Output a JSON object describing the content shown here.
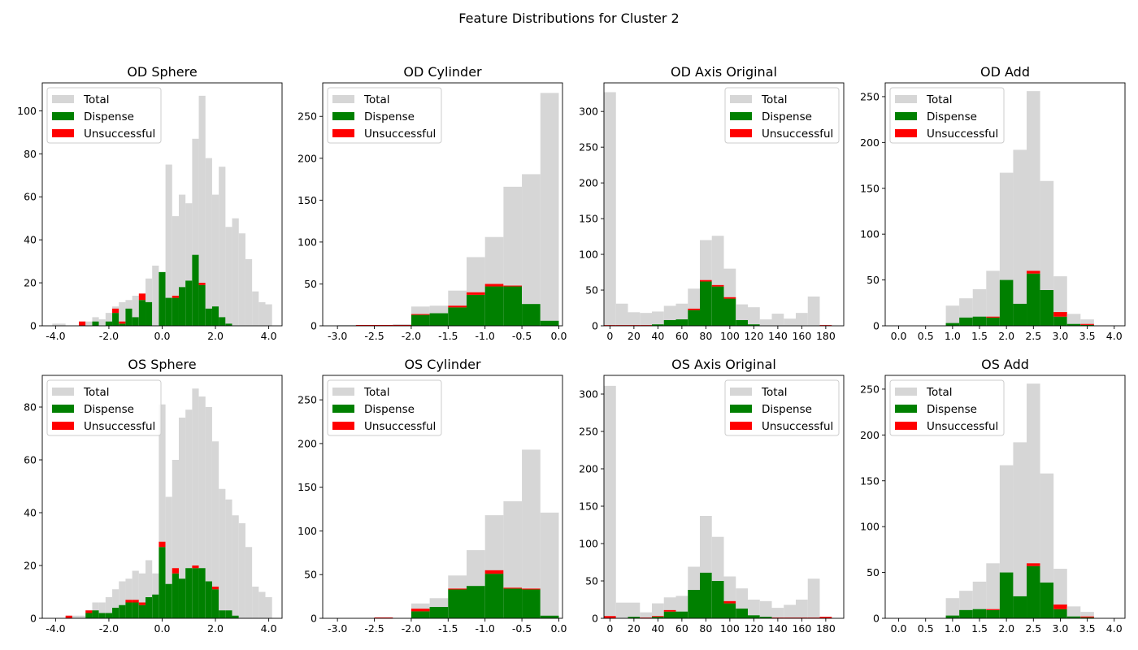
{
  "suptitle": "Feature Distributions for Cluster 2",
  "legend_labels": [
    "Total",
    "Dispense",
    "Unsuccessful"
  ],
  "colors": {
    "total": "#d6d6d6",
    "dispense": "#008000",
    "unsuccessful": "#ff0000"
  },
  "chart_data": [
    {
      "type": "bar",
      "stacked": true,
      "title": "OD Sphere",
      "xlim": [
        -4.5,
        4.5
      ],
      "ylim": [
        0,
        113
      ],
      "xticks": [
        -4,
        -2,
        0,
        2,
        4
      ],
      "xtick_labels": [
        "-4.0",
        "-2.0",
        "0.0",
        "2.0",
        "4.0"
      ],
      "yticks": [
        0,
        20,
        40,
        60,
        80,
        100
      ],
      "legend_position": "upper left",
      "bin_width": 0.25,
      "x": [
        -4.0,
        -3.75,
        -3.5,
        -3.25,
        -3.0,
        -2.75,
        -2.5,
        -2.25,
        -2.0,
        -1.75,
        -1.5,
        -1.25,
        -1.0,
        -0.75,
        -0.5,
        -0.25,
        0.0,
        0.25,
        0.5,
        0.75,
        1.0,
        1.25,
        1.5,
        1.75,
        2.0,
        2.25,
        2.5,
        2.75,
        3.0,
        3.25,
        3.5,
        3.75,
        4.0
      ],
      "series": [
        {
          "name": "Total",
          "values": [
            1,
            1,
            0,
            0,
            2,
            2,
            4,
            3,
            6,
            9,
            11,
            12,
            14,
            12,
            22,
            28,
            16,
            75,
            51,
            61,
            57,
            87,
            107,
            78,
            61,
            74,
            46,
            50,
            43,
            31,
            16,
            11,
            10
          ]
        },
        {
          "name": "Dispense",
          "values": [
            0,
            0,
            0,
            0,
            0,
            0,
            2,
            0,
            2,
            6,
            1,
            8,
            4,
            12,
            11,
            0,
            25,
            13,
            13,
            18,
            21,
            33,
            19,
            8,
            9,
            4,
            1,
            0,
            0,
            0,
            0,
            0,
            0
          ]
        },
        {
          "name": "Unsuccessful",
          "values": [
            0,
            0,
            0,
            0,
            2,
            0,
            0,
            0,
            0,
            2,
            1,
            0,
            0,
            3,
            0,
            0,
            0,
            0,
            1,
            0,
            0,
            0,
            1,
            0,
            0,
            0,
            0,
            0,
            0,
            0,
            0,
            0,
            0
          ]
        }
      ]
    },
    {
      "type": "bar",
      "stacked": true,
      "title": "OD Cylinder",
      "xlim": [
        -3.2,
        0.05
      ],
      "ylim": [
        0,
        290
      ],
      "xticks": [
        -3.0,
        -2.5,
        -2.0,
        -1.5,
        -1.0,
        -0.5,
        0.0
      ],
      "xtick_labels": [
        "-3.0",
        "-2.5",
        "-2.0",
        "-1.5",
        "-1.0",
        "-0.5",
        "0.0"
      ],
      "yticks": [
        0,
        50,
        100,
        150,
        200,
        250
      ],
      "legend_position": "upper left",
      "bin_width": 0.25,
      "x": [
        -2.875,
        -2.625,
        -2.375,
        -2.125,
        -1.875,
        -1.625,
        -1.375,
        -1.125,
        -0.875,
        -0.625,
        -0.375,
        -0.125
      ],
      "series": [
        {
          "name": "Total",
          "values": [
            1,
            1,
            1,
            2,
            23,
            24,
            42,
            82,
            106,
            166,
            181,
            278
          ]
        },
        {
          "name": "Dispense",
          "values": [
            0,
            0,
            0,
            0,
            13,
            15,
            22,
            37,
            47,
            47,
            26,
            6
          ]
        },
        {
          "name": "Unsuccessful",
          "values": [
            0,
            1,
            1,
            1,
            1,
            0,
            2,
            3,
            3,
            1,
            0,
            0
          ]
        }
      ]
    },
    {
      "type": "bar",
      "stacked": true,
      "title": "OD Axis Original",
      "xlim": [
        -5,
        195
      ],
      "ylim": [
        0,
        340
      ],
      "xticks": [
        0,
        20,
        40,
        60,
        80,
        100,
        120,
        140,
        160,
        180
      ],
      "xtick_labels": [
        "0",
        "20",
        "40",
        "60",
        "80",
        "100",
        "120",
        "140",
        "160",
        "180"
      ],
      "yticks": [
        0,
        50,
        100,
        150,
        200,
        250,
        300
      ],
      "legend_position": "upper right",
      "bin_width": 10,
      "x": [
        0,
        10,
        20,
        30,
        40,
        50,
        60,
        70,
        80,
        90,
        100,
        110,
        120,
        130,
        140,
        150,
        160,
        170,
        180
      ],
      "series": [
        {
          "name": "Total",
          "values": [
            327,
            31,
            19,
            18,
            20,
            28,
            31,
            52,
            120,
            126,
            80,
            30,
            26,
            9,
            17,
            10,
            18,
            41,
            0
          ]
        },
        {
          "name": "Dispense",
          "values": [
            0,
            0,
            0,
            0,
            2,
            8,
            9,
            22,
            62,
            55,
            38,
            8,
            2,
            0,
            0,
            0,
            0,
            0,
            0
          ]
        },
        {
          "name": "Unsuccessful",
          "values": [
            1,
            1,
            1,
            1,
            0,
            0,
            0,
            2,
            2,
            2,
            2,
            0,
            0,
            0,
            0,
            0,
            0,
            0,
            1
          ]
        }
      ]
    },
    {
      "type": "bar",
      "stacked": true,
      "title": "OD Add",
      "xlim": [
        -0.25,
        4.2
      ],
      "ylim": [
        0,
        265
      ],
      "xticks": [
        0.0,
        0.5,
        1.0,
        1.5,
        2.0,
        2.5,
        3.0,
        3.5,
        4.0
      ],
      "xtick_labels": [
        "0.0",
        "0.5",
        "1.0",
        "1.5",
        "2.0",
        "2.5",
        "3.0",
        "3.5",
        "4.0"
      ],
      "yticks": [
        0,
        50,
        100,
        150,
        200,
        250
      ],
      "legend_position": "upper left",
      "bin_width": 0.25,
      "x": [
        1.0,
        1.25,
        1.5,
        1.75,
        2.0,
        2.25,
        2.5,
        2.75,
        3.0,
        3.25,
        3.5
      ],
      "series": [
        {
          "name": "Total",
          "values": [
            22,
            30,
            40,
            60,
            167,
            192,
            256,
            158,
            54,
            13,
            7
          ]
        },
        {
          "name": "Dispense",
          "values": [
            3,
            9,
            10,
            9,
            50,
            24,
            57,
            39,
            10,
            2,
            1
          ]
        },
        {
          "name": "Unsuccessful",
          "values": [
            0,
            0,
            0,
            1,
            0,
            0,
            3,
            0,
            5,
            0,
            1
          ]
        }
      ]
    },
    {
      "type": "bar",
      "stacked": true,
      "title": "OS Sphere",
      "xlim": [
        -4.5,
        4.5
      ],
      "ylim": [
        0,
        92
      ],
      "xticks": [
        -4,
        -2,
        0,
        2,
        4
      ],
      "xtick_labels": [
        "-4.0",
        "-2.0",
        "0.0",
        "2.0",
        "4.0"
      ],
      "yticks": [
        0,
        20,
        40,
        60,
        80
      ],
      "legend_position": "upper left",
      "bin_width": 0.25,
      "x": [
        -4.0,
        -3.75,
        -3.5,
        -3.25,
        -3.0,
        -2.75,
        -2.5,
        -2.25,
        -2.0,
        -1.75,
        -1.5,
        -1.25,
        -1.0,
        -0.75,
        -0.5,
        -0.25,
        0.0,
        0.25,
        0.5,
        0.75,
        1.0,
        1.25,
        1.5,
        1.75,
        2.0,
        2.25,
        2.5,
        2.75,
        3.0,
        3.25,
        3.5,
        3.75,
        4.0
      ],
      "series": [
        {
          "name": "Total",
          "values": [
            0,
            0,
            1,
            1,
            1,
            3,
            6,
            6,
            8,
            11,
            14,
            15,
            18,
            17,
            22,
            17,
            81,
            46,
            60,
            76,
            79,
            87,
            84,
            80,
            67,
            49,
            45,
            39,
            36,
            27,
            12,
            10,
            8
          ]
        },
        {
          "name": "Dispense",
          "values": [
            0,
            0,
            0,
            0,
            0,
            2,
            3,
            2,
            2,
            4,
            5,
            6,
            6,
            5,
            8,
            9,
            27,
            13,
            17,
            15,
            19,
            19,
            19,
            14,
            11,
            3,
            3,
            1,
            0,
            0,
            0,
            0,
            0
          ]
        },
        {
          "name": "Unsuccessful",
          "values": [
            0,
            0,
            1,
            0,
            0,
            1,
            0,
            0,
            0,
            0,
            0,
            1,
            1,
            1,
            0,
            0,
            2,
            0,
            2,
            0,
            0,
            1,
            0,
            0,
            1,
            0,
            0,
            0,
            0,
            0,
            0,
            0,
            0
          ]
        }
      ]
    },
    {
      "type": "bar",
      "stacked": true,
      "title": "OS Cylinder",
      "xlim": [
        -3.2,
        0.05
      ],
      "ylim": [
        0,
        278
      ],
      "xticks": [
        -3.0,
        -2.5,
        -2.0,
        -1.5,
        -1.0,
        -0.5,
        0.0
      ],
      "xtick_labels": [
        "-3.0",
        "-2.5",
        "-2.0",
        "-1.5",
        "-1.0",
        "-0.5",
        "0.0"
      ],
      "yticks": [
        0,
        50,
        100,
        150,
        200,
        250
      ],
      "legend_position": "upper left",
      "bin_width": 0.25,
      "x": [
        -2.875,
        -2.625,
        -2.375,
        -2.125,
        -1.875,
        -1.625,
        -1.375,
        -1.125,
        -0.875,
        -0.625,
        -0.375,
        -0.125
      ],
      "series": [
        {
          "name": "Total",
          "values": [
            0,
            0,
            1,
            0,
            17,
            23,
            49,
            78,
            118,
            134,
            193,
            121
          ]
        },
        {
          "name": "Dispense",
          "values": [
            0,
            0,
            0,
            0,
            8,
            13,
            33,
            37,
            51,
            34,
            33,
            3
          ]
        },
        {
          "name": "Unsuccessful",
          "values": [
            0,
            0,
            1,
            0,
            3,
            0,
            1,
            0,
            4,
            1,
            1,
            0
          ]
        }
      ]
    },
    {
      "type": "bar",
      "stacked": true,
      "title": "OS Axis Original",
      "xlim": [
        -5,
        195
      ],
      "ylim": [
        0,
        325
      ],
      "xticks": [
        0,
        20,
        40,
        60,
        80,
        100,
        120,
        140,
        160,
        180
      ],
      "xtick_labels": [
        "0",
        "20",
        "40",
        "60",
        "80",
        "100",
        "120",
        "140",
        "160",
        "180"
      ],
      "yticks": [
        0,
        50,
        100,
        150,
        200,
        250,
        300
      ],
      "legend_position": "upper right",
      "bin_width": 10,
      "x": [
        0,
        10,
        20,
        30,
        40,
        50,
        60,
        70,
        80,
        90,
        100,
        110,
        120,
        130,
        140,
        150,
        160,
        170,
        180
      ],
      "series": [
        {
          "name": "Total",
          "values": [
            311,
            21,
            21,
            8,
            20,
            28,
            30,
            69,
            137,
            109,
            56,
            40,
            25,
            23,
            14,
            18,
            25,
            53,
            0
          ]
        },
        {
          "name": "Dispense",
          "values": [
            0,
            0,
            2,
            0,
            2,
            9,
            9,
            38,
            61,
            50,
            20,
            13,
            4,
            2,
            0,
            0,
            0,
            0,
            0
          ]
        },
        {
          "name": "Unsuccessful",
          "values": [
            3,
            0,
            0,
            1,
            1,
            2,
            0,
            0,
            0,
            0,
            3,
            0,
            0,
            0,
            1,
            1,
            1,
            1,
            2
          ]
        }
      ]
    },
    {
      "type": "bar",
      "stacked": true,
      "title": "OS Add",
      "xlim": [
        -0.25,
        4.2
      ],
      "ylim": [
        0,
        265
      ],
      "xticks": [
        0.0,
        0.5,
        1.0,
        1.5,
        2.0,
        2.5,
        3.0,
        3.5,
        4.0
      ],
      "xtick_labels": [
        "0.0",
        "0.5",
        "1.0",
        "1.5",
        "2.0",
        "2.5",
        "3.0",
        "3.5",
        "4.0"
      ],
      "yticks": [
        0,
        50,
        100,
        150,
        200,
        250
      ],
      "legend_position": "upper left",
      "bin_width": 0.25,
      "x": [
        1.0,
        1.25,
        1.5,
        1.75,
        2.0,
        2.25,
        2.5,
        2.75,
        3.0,
        3.25,
        3.5
      ],
      "series": [
        {
          "name": "Total",
          "values": [
            22,
            30,
            40,
            60,
            167,
            192,
            256,
            158,
            54,
            13,
            7
          ]
        },
        {
          "name": "Dispense",
          "values": [
            3,
            9,
            10,
            9,
            50,
            24,
            57,
            39,
            10,
            2,
            1
          ]
        },
        {
          "name": "Unsuccessful",
          "values": [
            0,
            0,
            0,
            1,
            0,
            0,
            3,
            0,
            5,
            0,
            1
          ]
        }
      ]
    }
  ]
}
